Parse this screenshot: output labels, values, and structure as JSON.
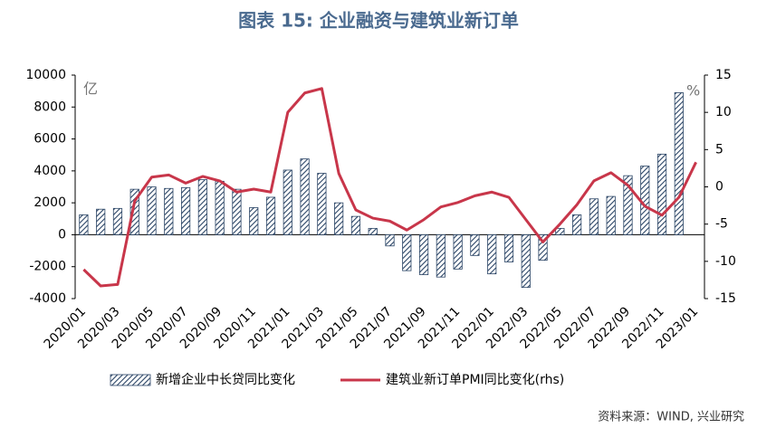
{
  "chart_data": {
    "type": "bar_line",
    "title": "图表 15: 企业融资与建筑业新订单",
    "y_unit": "亿",
    "y2_unit": "%",
    "source": "资料来源：WIND, 兴业研究",
    "categories": [
      "2020/01",
      null,
      "2020/03",
      null,
      "2020/05",
      null,
      "2020/07",
      null,
      "2020/09",
      null,
      "2020/11",
      null,
      "2021/01",
      null,
      "2021/03",
      null,
      "2021/05",
      null,
      "2021/07",
      null,
      "2021/09",
      null,
      "2021/11",
      null,
      "2022/01",
      null,
      "2022/03",
      null,
      "2022/05",
      null,
      "2022/07",
      null,
      "2022/09",
      null,
      "2022/11",
      null,
      "2023/01"
    ],
    "series": [
      {
        "name": "新增企业中长贷同比变化",
        "type": "bar",
        "color": "#2b4566",
        "values": [
          1250,
          1600,
          1650,
          2850,
          3000,
          2900,
          2950,
          3450,
          3350,
          2850,
          1700,
          2350,
          4050,
          4750,
          3850,
          2000,
          1150,
          400,
          -700,
          -2250,
          -2500,
          -2650,
          -2150,
          -1300,
          -2450,
          -1700,
          -3300,
          -1600,
          400,
          1250,
          2250,
          2400,
          3700,
          4300,
          5050,
          8900,
          null
        ]
      },
      {
        "name": "建筑业新订单PMI同比变化(rhs)",
        "type": "line",
        "axis": "y2",
        "color": "#c8364a",
        "values": [
          -11.1,
          -13.3,
          -13.1,
          -1.9,
          1.3,
          1.6,
          0.5,
          1.4,
          0.8,
          -0.7,
          -0.3,
          -0.7,
          10.0,
          12.6,
          13.2,
          1.8,
          -3.1,
          -4.2,
          -4.6,
          -5.8,
          -4.4,
          -2.7,
          -2.1,
          -1.2,
          -0.7,
          -1.4,
          -4.4,
          -7.4,
          -5.0,
          -2.4,
          0.8,
          1.9,
          0.2,
          -2.6,
          -3.8,
          -1.4,
          3.3
        ]
      }
    ],
    "ylim": [
      -4000,
      10000
    ],
    "yticks": [
      -4000,
      -2000,
      0,
      2000,
      4000,
      6000,
      8000,
      10000
    ],
    "y2lim": [
      -15,
      15
    ],
    "y2ticks": [
      -15,
      -10,
      -5,
      0,
      5,
      10,
      15
    ],
    "legend": "bottom"
  }
}
